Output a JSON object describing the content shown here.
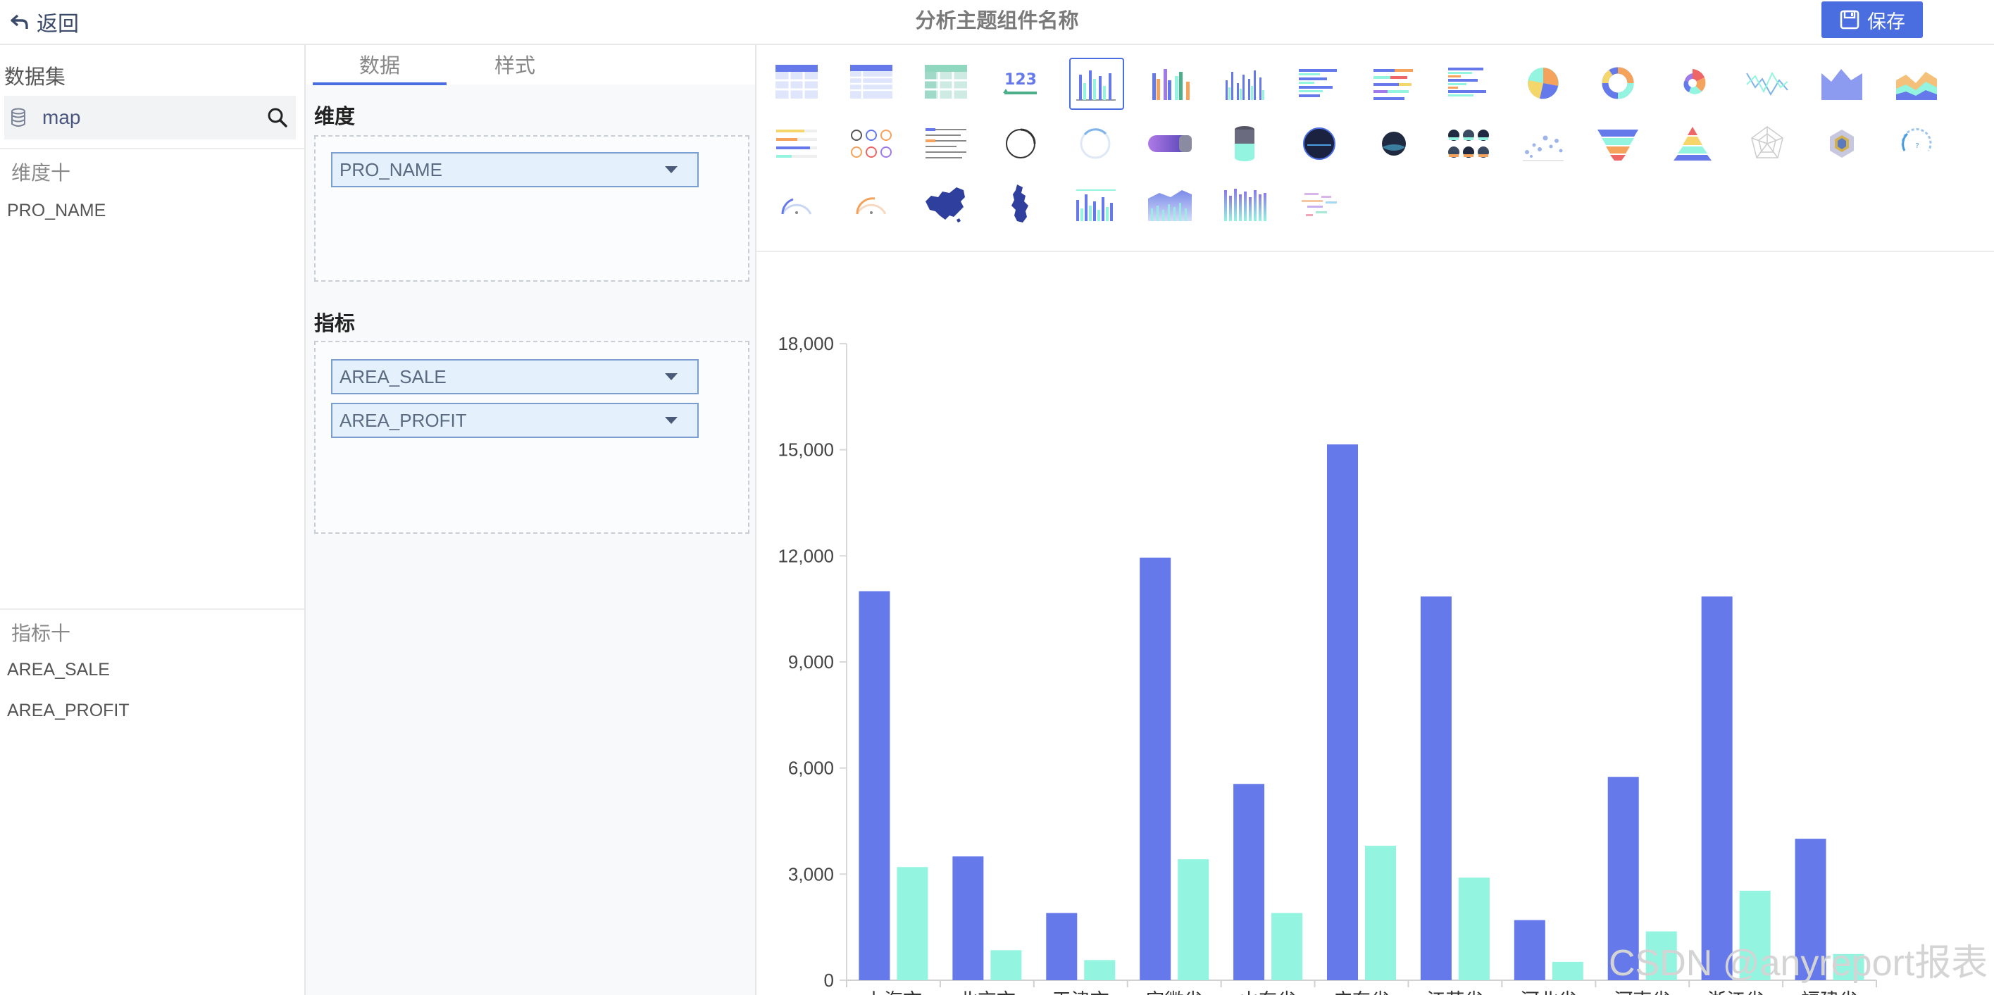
{
  "header": {
    "back_label": "返回",
    "title": "分析主题组件名称",
    "save_label": "保存"
  },
  "left_panel": {
    "dataset_title": "数据集",
    "dataset_name": "map",
    "dimension_heading": "维度十",
    "dimension_fields": [
      "PRO_NAME"
    ],
    "measure_heading": "指标十",
    "measure_fields": [
      "AREA_SALE",
      "AREA_PROFIT"
    ]
  },
  "config_panel": {
    "tabs": [
      {
        "label": "数据",
        "active": true
      },
      {
        "label": "样式",
        "active": false
      }
    ],
    "dimension_group_title": "维度",
    "dimension_chips": [
      "PRO_NAME"
    ],
    "measure_group_title": "指标",
    "measure_chips": [
      "AREA_SALE",
      "AREA_PROFIT"
    ]
  },
  "chart_types": [
    {
      "name": "table-icon"
    },
    {
      "name": "detail-table-icon"
    },
    {
      "name": "pivot-table-icon"
    },
    {
      "name": "number-card-icon",
      "text": "123"
    },
    {
      "name": "bar-chart-icon",
      "selected": true
    },
    {
      "name": "multi-bar-chart-icon"
    },
    {
      "name": "thin-bar-chart-icon"
    },
    {
      "name": "horizontal-bar-icon"
    },
    {
      "name": "stacked-horizontal-bar-icon"
    },
    {
      "name": "multi-horizontal-bar-icon"
    },
    {
      "name": "pie-chart-icon"
    },
    {
      "name": "donut-chart-icon"
    },
    {
      "name": "rose-chart-icon"
    },
    {
      "name": "line-chart-icon"
    },
    {
      "name": "area-chart-icon"
    },
    {
      "name": "stacked-area-icon"
    },
    {
      "name": "progress-bars-icon"
    },
    {
      "name": "ring-grid-icon"
    },
    {
      "name": "text-list-icon"
    },
    {
      "name": "ring-gauge-icon"
    },
    {
      "name": "ring-progress-icon"
    },
    {
      "name": "capsule-bar-icon"
    },
    {
      "name": "cylinder-icon"
    },
    {
      "name": "dark-circle-icon"
    },
    {
      "name": "dark-ball-icon"
    },
    {
      "name": "ball-grid-icon"
    },
    {
      "name": "scatter-icon"
    },
    {
      "name": "funnel-icon"
    },
    {
      "name": "pyramid-icon"
    },
    {
      "name": "radar-icon"
    },
    {
      "name": "hexagon-icon"
    },
    {
      "name": "dash-gauge-icon"
    },
    {
      "name": "blue-gauge-icon"
    },
    {
      "name": "orange-gauge-icon"
    },
    {
      "name": "china-map-icon"
    },
    {
      "name": "province-map-icon"
    },
    {
      "name": "bar-line-combo-icon"
    },
    {
      "name": "gradient-area-bar-icon"
    },
    {
      "name": "gradient-bar-icon"
    },
    {
      "name": "word-cloud-icon"
    }
  ],
  "colors": {
    "accent": "#4a6ee0",
    "series_sale": "#6579ea",
    "series_profit": "#93f4df"
  },
  "chart_data": {
    "type": "bar",
    "categories": [
      "上海市",
      "北京市",
      "天津市",
      "安徽省",
      "山东省",
      "广东省",
      "江苏省",
      "河北省",
      "河南省",
      "浙江省",
      "福建省"
    ],
    "series": [
      {
        "values": [
          11000,
          3500,
          1900,
          11950,
          5550,
          15150,
          10850,
          1700,
          5750,
          10850,
          4000
        ]
      },
      {
        "values": [
          3200,
          850,
          570,
          3420,
          1900,
          3800,
          2900,
          520,
          1380,
          2530,
          740
        ]
      }
    ],
    "ylim": [
      0,
      18000
    ],
    "yticks": [
      "0",
      "3,000",
      "6,000",
      "9,000",
      "12,000",
      "15,000",
      "18,000"
    ],
    "grid": false
  },
  "watermark": "CSDN @anyreport报表"
}
